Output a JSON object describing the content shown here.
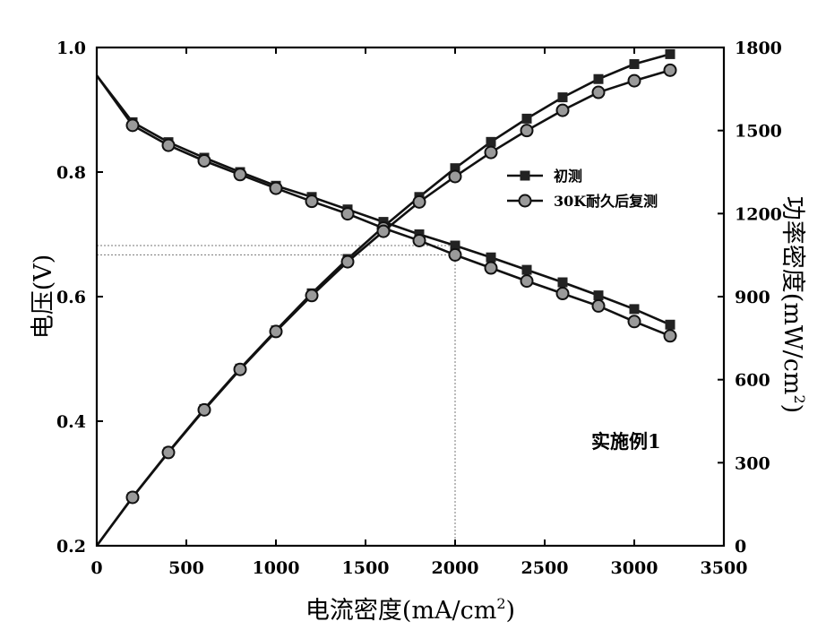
{
  "chart_data": {
    "type": "line",
    "annotation": "实施例1",
    "x": [
      0,
      200,
      400,
      600,
      800,
      1000,
      1200,
      1400,
      1600,
      1800,
      2000,
      2200,
      2400,
      2600,
      2800,
      3000,
      3200
    ],
    "xlabel": "电流密度(mA/cm",
    "xlabel_sup": "2",
    "xlabel_end": ")",
    "ylabel_left": "电压(V)",
    "ylabel_right": "功率密度(mW/cm",
    "ylabel_right_sup": "2",
    "ylabel_right_end": ")",
    "xlim": [
      0,
      3500
    ],
    "ylim_left": [
      0.2,
      1.0
    ],
    "ylim_right": [
      0,
      1800
    ],
    "x_ticks": [
      "0",
      "500",
      "1000",
      "1500",
      "2000",
      "2500",
      "3000",
      "3500"
    ],
    "y_left_ticks": [
      "0.2",
      "0.4",
      "0.6",
      "0.8",
      "1.0"
    ],
    "y_right_ticks": [
      "0",
      "300",
      "600",
      "900",
      "1200",
      "1500",
      "1800"
    ],
    "legend_position": "top-right",
    "series": [
      {
        "name": "初测",
        "marker": "square",
        "voltage": [
          0.955,
          0.88,
          0.848,
          0.823,
          0.8,
          0.778,
          0.76,
          0.74,
          0.72,
          0.7,
          0.682,
          0.663,
          0.643,
          0.623,
          0.602,
          0.58,
          0.555
        ],
        "power": [
          0,
          176,
          339,
          494,
          640,
          778,
          912,
          1036,
          1152,
          1260,
          1364,
          1459,
          1543,
          1620,
          1686,
          1740,
          1776
        ]
      },
      {
        "name": "30K耐久后复测",
        "marker": "circle",
        "voltage": [
          0.955,
          0.875,
          0.843,
          0.818,
          0.796,
          0.774,
          0.753,
          0.733,
          0.71,
          0.69,
          0.667,
          0.646,
          0.625,
          0.605,
          0.585,
          0.56,
          0.537
        ],
        "power": [
          0,
          175,
          337,
          491,
          637,
          774,
          904,
          1026,
          1136,
          1242,
          1334,
          1421,
          1500,
          1573,
          1638,
          1680,
          1718
        ]
      }
    ],
    "reference": {
      "x": 2000,
      "voltages": [
        0.682,
        0.667
      ]
    }
  }
}
